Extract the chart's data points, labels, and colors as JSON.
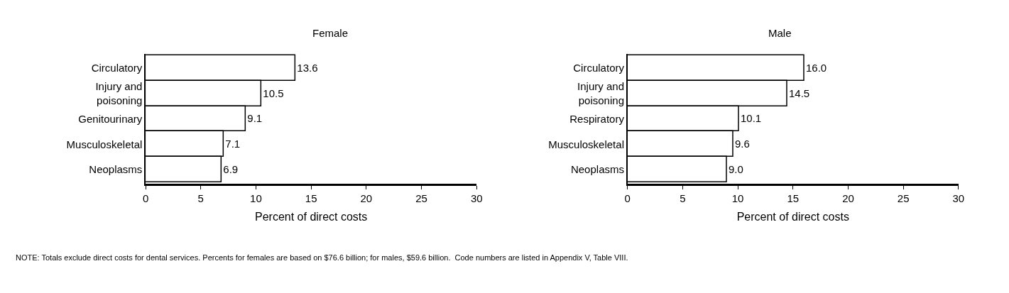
{
  "chart_data": [
    {
      "type": "bar",
      "orientation": "horizontal",
      "title": "Female",
      "xlabel": "Percent of direct costs",
      "categories": [
        "Circulatory",
        "Injury and poisoning",
        "Genitourinary",
        "Musculoskeletal",
        "Neoplasms"
      ],
      "values": [
        13.6,
        10.5,
        9.1,
        7.1,
        6.9
      ],
      "value_labels": [
        "13.6",
        "10.5",
        "9.1",
        "7.1",
        "6.9"
      ],
      "color": "#ffffff",
      "xlim": [
        0,
        30
      ],
      "xticks": [
        0,
        5,
        10,
        15,
        20,
        25,
        30
      ],
      "annotations": [
        "NOTE: Totals exclude direct costs for dental services. Percents for females are based on $76.6 billion; for males, $59.6 billion.  Code numbers are listed in Appendix V, Table VIII."
      ]
    },
    {
      "type": "bar",
      "orientation": "horizontal",
      "title": "Male",
      "xlabel": "Percent of direct costs",
      "categories": [
        "Circulatory",
        "Injury and poisoning",
        "Respiratory",
        "Musculoskeletal",
        "Neoplasms"
      ],
      "values": [
        16.0,
        14.5,
        10.1,
        9.6,
        9.0
      ],
      "value_labels": [
        "16.0",
        "14.5",
        "10.1",
        "9.6",
        "9.0"
      ],
      "color": "#ffffff",
      "xlim": [
        0,
        30
      ],
      "xticks": [
        0,
        5,
        10,
        15,
        20,
        25,
        30
      ]
    }
  ]
}
